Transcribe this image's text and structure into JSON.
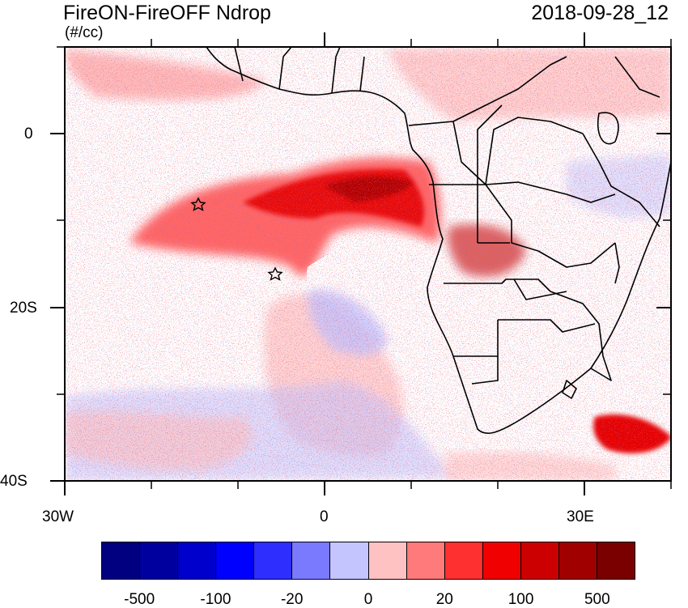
{
  "header": {
    "title": "FireON-FireOFF Ndrop",
    "valid_time": "2018-09-28_12",
    "units": "(#/cc)"
  },
  "map": {
    "lat_labels": [
      "0",
      "20S",
      "40S"
    ],
    "lon_labels": [
      "30W",
      "0",
      "30E"
    ],
    "markers": [
      "star",
      "star"
    ]
  },
  "colorbar": {
    "colors": [
      "#000080",
      "#00009e",
      "#0000cd",
      "#0000ff",
      "#2e2eff",
      "#7a7aff",
      "#c4c4ff",
      "#ffc2c2",
      "#ff7a7a",
      "#ff3030",
      "#f00000",
      "#cc0000",
      "#a00000",
      "#7a0000"
    ],
    "labels": [
      "-500",
      "-100",
      "-20",
      "0",
      "20",
      "100",
      "500"
    ]
  }
}
